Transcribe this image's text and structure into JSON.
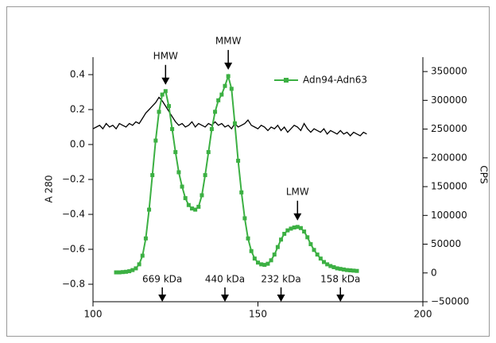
{
  "chart_data": {
    "type": "line",
    "ylabel": "A 280",
    "y2label": "CPS",
    "xlim": [
      100,
      200
    ],
    "xticks": [
      100,
      150,
      200
    ],
    "ylim": [
      -0.9,
      0.5
    ],
    "yticks": [
      {
        "value": -0.8,
        "label": "−0.8"
      },
      {
        "value": -0.6,
        "label": "−0.6"
      },
      {
        "value": -0.4,
        "label": "−0.4"
      },
      {
        "value": -0.2,
        "label": "−0.2"
      },
      {
        "value": 0,
        "label": "0.0"
      },
      0.2,
      0.4
    ],
    "y2lim": [
      -50000,
      375000
    ],
    "y2ticks": [
      {
        "value": -50000,
        "label": "−50000"
      },
      0,
      50000,
      100000,
      150000,
      200000,
      250000,
      300000,
      350000
    ],
    "legend": "top-right",
    "series": [
      {
        "color": "#000000",
        "x": [
          100,
          101,
          102,
          103,
          104,
          105,
          106,
          107,
          108,
          109,
          110,
          111,
          112,
          113,
          114,
          115,
          116,
          117,
          118,
          119,
          120,
          121,
          122,
          123,
          124,
          125,
          126,
          127,
          128,
          129,
          130,
          131,
          132,
          133,
          134,
          135,
          136,
          137,
          138,
          139,
          140,
          141,
          142,
          143,
          144,
          145,
          146,
          147,
          148,
          149,
          150,
          151,
          152,
          153,
          154,
          155,
          156,
          157,
          158,
          159,
          160,
          161,
          162,
          163,
          164,
          165,
          166,
          167,
          168,
          169,
          170,
          171,
          172,
          173,
          174,
          175,
          176,
          177,
          178,
          179,
          180,
          181,
          182,
          183
        ],
        "values": [
          0.09,
          0.1,
          0.11,
          0.09,
          0.12,
          0.1,
          0.11,
          0.09,
          0.12,
          0.11,
          0.1,
          0.12,
          0.11,
          0.13,
          0.12,
          0.15,
          0.18,
          0.2,
          0.22,
          0.24,
          0.27,
          0.25,
          0.22,
          0.19,
          0.16,
          0.13,
          0.11,
          0.12,
          0.1,
          0.11,
          0.13,
          0.1,
          0.12,
          0.11,
          0.1,
          0.12,
          0.11,
          0.13,
          0.11,
          0.12,
          0.1,
          0.11,
          0.09,
          0.12,
          0.1,
          0.11,
          0.12,
          0.14,
          0.11,
          0.1,
          0.09,
          0.11,
          0.1,
          0.08,
          0.1,
          0.09,
          0.11,
          0.08,
          0.1,
          0.07,
          0.09,
          0.11,
          0.1,
          0.08,
          0.12,
          0.09,
          0.07,
          0.09,
          0.08,
          0.07,
          0.09,
          0.06,
          0.08,
          0.07,
          0.06,
          0.08,
          0.06,
          0.07,
          0.05,
          0.07,
          0.06,
          0.05,
          0.07,
          0.06
        ]
      },
      {
        "name": "Adn94-Adn63",
        "color": "#3cb043",
        "axis": "y2",
        "marker": "square",
        "x": [
          107,
          108,
          109,
          110,
          111,
          112,
          113,
          114,
          115,
          116,
          117,
          118,
          119,
          120,
          121,
          122,
          123,
          124,
          125,
          126,
          127,
          128,
          129,
          130,
          131,
          132,
          133,
          134,
          135,
          136,
          137,
          138,
          139,
          140,
          141,
          142,
          143,
          144,
          145,
          146,
          147,
          148,
          149,
          150,
          151,
          152,
          153,
          154,
          155,
          156,
          157,
          158,
          159,
          160,
          161,
          162,
          163,
          164,
          165,
          166,
          167,
          168,
          169,
          170,
          171,
          172,
          173,
          174,
          175,
          176,
          177,
          178,
          179,
          180
        ],
        "values": [
          1000,
          1000,
          1500,
          2000,
          3000,
          5000,
          8000,
          15000,
          30000,
          60000,
          110000,
          170000,
          230000,
          280000,
          310000,
          316000,
          290000,
          250000,
          210000,
          175000,
          150000,
          130000,
          118000,
          112000,
          110000,
          115000,
          135000,
          170000,
          210000,
          250000,
          280000,
          300000,
          310000,
          325000,
          342000,
          320000,
          260000,
          195000,
          140000,
          95000,
          60000,
          38000,
          25000,
          18000,
          15000,
          14000,
          16000,
          22000,
          32000,
          45000,
          58000,
          68000,
          74000,
          77000,
          79000,
          80000,
          78000,
          72000,
          62000,
          50000,
          40000,
          32000,
          25000,
          19000,
          15000,
          12000,
          10000,
          8000,
          7000,
          6000,
          5000,
          4500,
          4000,
          3500
        ]
      }
    ],
    "peaks": [
      {
        "label": "HMW",
        "x": 122
      },
      {
        "label": "MMW",
        "x": 141
      },
      {
        "label": "LMW",
        "x": 162
      }
    ],
    "markers": [
      {
        "label": "669 kDa",
        "x": 121
      },
      {
        "label": "440 kDa",
        "x": 140
      },
      {
        "label": "232 kDa",
        "x": 157
      },
      {
        "label": "158 kDa",
        "x": 175
      }
    ]
  }
}
